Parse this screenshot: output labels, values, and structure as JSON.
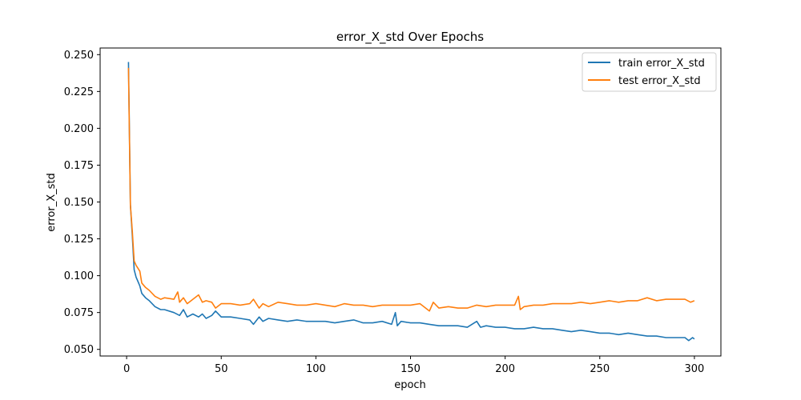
{
  "chart_data": {
    "type": "line",
    "title": "error_X_std Over Epochs",
    "xlabel": "epoch",
    "ylabel": "error_X_std",
    "xlim": [
      -14,
      314
    ],
    "ylim": [
      0.0455,
      0.2545
    ],
    "xticks": [
      0,
      50,
      100,
      150,
      200,
      250,
      300
    ],
    "xtick_labels": [
      "0",
      "50",
      "100",
      "150",
      "200",
      "250",
      "300"
    ],
    "yticks": [
      0.05,
      0.075,
      0.1,
      0.125,
      0.15,
      0.175,
      0.2,
      0.225,
      0.25
    ],
    "ytick_labels": [
      "0.050",
      "0.075",
      "0.100",
      "0.125",
      "0.150",
      "0.175",
      "0.200",
      "0.225",
      "0.250"
    ],
    "grid": false,
    "legend_position": "top-right",
    "series": [
      {
        "name": "train error_X_std",
        "color": "#1f77b4",
        "points": [
          [
            1,
            0.245
          ],
          [
            2,
            0.148
          ],
          [
            3,
            0.127
          ],
          [
            4,
            0.104
          ],
          [
            5,
            0.099
          ],
          [
            6,
            0.096
          ],
          [
            7,
            0.093
          ],
          [
            8,
            0.088
          ],
          [
            10,
            0.085
          ],
          [
            12,
            0.083
          ],
          [
            15,
            0.079
          ],
          [
            18,
            0.077
          ],
          [
            20,
            0.077
          ],
          [
            25,
            0.075
          ],
          [
            28,
            0.073
          ],
          [
            30,
            0.077
          ],
          [
            32,
            0.072
          ],
          [
            35,
            0.074
          ],
          [
            38,
            0.072
          ],
          [
            40,
            0.074
          ],
          [
            42,
            0.071
          ],
          [
            45,
            0.073
          ],
          [
            47,
            0.076
          ],
          [
            50,
            0.072
          ],
          [
            55,
            0.072
          ],
          [
            60,
            0.071
          ],
          [
            65,
            0.07
          ],
          [
            67,
            0.067
          ],
          [
            70,
            0.072
          ],
          [
            72,
            0.069
          ],
          [
            75,
            0.071
          ],
          [
            80,
            0.07
          ],
          [
            85,
            0.069
          ],
          [
            90,
            0.07
          ],
          [
            95,
            0.069
          ],
          [
            100,
            0.069
          ],
          [
            105,
            0.069
          ],
          [
            110,
            0.068
          ],
          [
            115,
            0.069
          ],
          [
            120,
            0.07
          ],
          [
            125,
            0.068
          ],
          [
            130,
            0.068
          ],
          [
            135,
            0.069
          ],
          [
            140,
            0.067
          ],
          [
            142,
            0.075
          ],
          [
            143,
            0.066
          ],
          [
            145,
            0.069
          ],
          [
            150,
            0.068
          ],
          [
            155,
            0.068
          ],
          [
            160,
            0.067
          ],
          [
            165,
            0.066
          ],
          [
            170,
            0.066
          ],
          [
            175,
            0.066
          ],
          [
            180,
            0.065
          ],
          [
            185,
            0.069
          ],
          [
            187,
            0.065
          ],
          [
            190,
            0.066
          ],
          [
            195,
            0.065
          ],
          [
            200,
            0.065
          ],
          [
            205,
            0.064
          ],
          [
            210,
            0.064
          ],
          [
            215,
            0.065
          ],
          [
            220,
            0.064
          ],
          [
            225,
            0.064
          ],
          [
            230,
            0.063
          ],
          [
            235,
            0.062
          ],
          [
            240,
            0.063
          ],
          [
            245,
            0.062
          ],
          [
            250,
            0.061
          ],
          [
            255,
            0.061
          ],
          [
            260,
            0.06
          ],
          [
            265,
            0.061
          ],
          [
            270,
            0.06
          ],
          [
            275,
            0.059
          ],
          [
            280,
            0.059
          ],
          [
            285,
            0.058
          ],
          [
            290,
            0.058
          ],
          [
            295,
            0.058
          ],
          [
            297,
            0.056
          ],
          [
            299,
            0.058
          ],
          [
            300,
            0.057
          ]
        ]
      },
      {
        "name": "test error_X_std",
        "color": "#ff7f0e",
        "points": [
          [
            1,
            0.241
          ],
          [
            2,
            0.148
          ],
          [
            3,
            0.13
          ],
          [
            4,
            0.11
          ],
          [
            5,
            0.107
          ],
          [
            6,
            0.105
          ],
          [
            7,
            0.103
          ],
          [
            8,
            0.095
          ],
          [
            10,
            0.092
          ],
          [
            12,
            0.09
          ],
          [
            15,
            0.086
          ],
          [
            18,
            0.084
          ],
          [
            20,
            0.085
          ],
          [
            25,
            0.084
          ],
          [
            27,
            0.089
          ],
          [
            28,
            0.082
          ],
          [
            30,
            0.085
          ],
          [
            32,
            0.081
          ],
          [
            35,
            0.084
          ],
          [
            38,
            0.087
          ],
          [
            40,
            0.082
          ],
          [
            42,
            0.083
          ],
          [
            45,
            0.082
          ],
          [
            47,
            0.078
          ],
          [
            50,
            0.081
          ],
          [
            55,
            0.081
          ],
          [
            60,
            0.08
          ],
          [
            65,
            0.081
          ],
          [
            67,
            0.084
          ],
          [
            70,
            0.078
          ],
          [
            72,
            0.081
          ],
          [
            75,
            0.079
          ],
          [
            80,
            0.082
          ],
          [
            85,
            0.081
          ],
          [
            90,
            0.08
          ],
          [
            95,
            0.08
          ],
          [
            100,
            0.081
          ],
          [
            105,
            0.08
          ],
          [
            110,
            0.079
          ],
          [
            115,
            0.081
          ],
          [
            120,
            0.08
          ],
          [
            125,
            0.08
          ],
          [
            130,
            0.079
          ],
          [
            135,
            0.08
          ],
          [
            140,
            0.08
          ],
          [
            145,
            0.08
          ],
          [
            150,
            0.08
          ],
          [
            155,
            0.081
          ],
          [
            160,
            0.076
          ],
          [
            162,
            0.082
          ],
          [
            165,
            0.078
          ],
          [
            170,
            0.079
          ],
          [
            175,
            0.078
          ],
          [
            180,
            0.078
          ],
          [
            185,
            0.08
          ],
          [
            190,
            0.079
          ],
          [
            195,
            0.08
          ],
          [
            200,
            0.08
          ],
          [
            205,
            0.08
          ],
          [
            207,
            0.086
          ],
          [
            208,
            0.077
          ],
          [
            210,
            0.079
          ],
          [
            215,
            0.08
          ],
          [
            220,
            0.08
          ],
          [
            225,
            0.081
          ],
          [
            230,
            0.081
          ],
          [
            235,
            0.081
          ],
          [
            240,
            0.082
          ],
          [
            245,
            0.081
          ],
          [
            250,
            0.082
          ],
          [
            255,
            0.083
          ],
          [
            260,
            0.082
          ],
          [
            265,
            0.083
          ],
          [
            270,
            0.083
          ],
          [
            275,
            0.085
          ],
          [
            280,
            0.083
          ],
          [
            285,
            0.084
          ],
          [
            290,
            0.084
          ],
          [
            295,
            0.084
          ],
          [
            298,
            0.082
          ],
          [
            300,
            0.083
          ]
        ]
      }
    ]
  }
}
